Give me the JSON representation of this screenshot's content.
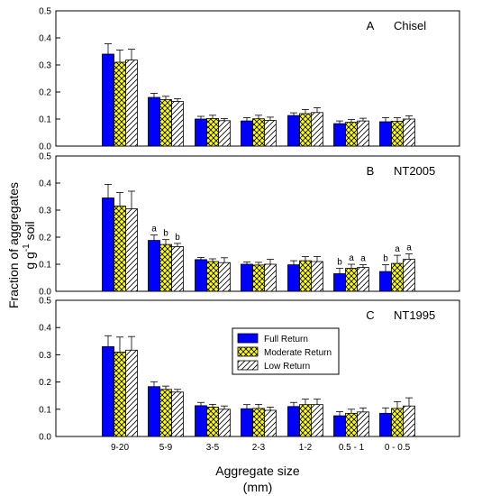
{
  "figure": {
    "ylabel_line1": "Fraction of aggregates",
    "ylabel_line2_main": "g g",
    "ylabel_line2_sup": "-1",
    "ylabel_line2_tail": " soil",
    "xlabel_line1": "Aggregate size",
    "xlabel_line2": "(mm)"
  },
  "legend": {
    "items": [
      {
        "label": "Full Return",
        "pattern": "solid"
      },
      {
        "label": "Moderate Return",
        "pattern": "crosshatch"
      },
      {
        "label": "Low Return",
        "pattern": "diagonal"
      }
    ]
  },
  "colors": {
    "full_return": "#0000ff",
    "moderate_return": "#ffff00",
    "low_return": "#ffffff",
    "outline": "#000000"
  },
  "chart_data": [
    {
      "type": "bar",
      "panel_letter": "A",
      "panel_name": "Chisel",
      "categories": [
        "9-20",
        "5-9",
        "3-5",
        "2-3",
        "1-2",
        "0.5 - 1",
        "0 - 0.5"
      ],
      "ylim": [
        0,
        0.5
      ],
      "yticks": [
        "0.0",
        "0.1",
        "0.2",
        "0.3",
        "0.4",
        "0.5"
      ],
      "series": [
        {
          "name": "Full Return",
          "values": [
            0.34,
            0.18,
            0.1,
            0.093,
            0.113,
            0.083,
            0.09
          ],
          "errors": [
            0.038,
            0.015,
            0.01,
            0.012,
            0.01,
            0.01,
            0.015
          ]
        },
        {
          "name": "Moderate Return",
          "values": [
            0.31,
            0.172,
            0.102,
            0.101,
            0.12,
            0.088,
            0.092
          ],
          "errors": [
            0.045,
            0.012,
            0.012,
            0.013,
            0.015,
            0.01,
            0.013
          ]
        },
        {
          "name": "Low Return",
          "values": [
            0.318,
            0.165,
            0.094,
            0.095,
            0.124,
            0.093,
            0.1
          ],
          "errors": [
            0.04,
            0.01,
            0.008,
            0.012,
            0.018,
            0.01,
            0.012
          ]
        }
      ],
      "annotations": []
    },
    {
      "type": "bar",
      "panel_letter": "B",
      "panel_name": "NT2005",
      "categories": [
        "9-20",
        "5-9",
        "3-5",
        "2-3",
        "1-2",
        "0.5 - 1",
        "0 - 0.5"
      ],
      "ylim": [
        0,
        0.5
      ],
      "yticks": [
        "0.0",
        "0.1",
        "0.2",
        "0.3",
        "0.4",
        "0.5"
      ],
      "series": [
        {
          "name": "Full Return",
          "values": [
            0.345,
            0.188,
            0.117,
            0.1,
            0.098,
            0.065,
            0.073
          ],
          "errors": [
            0.05,
            0.02,
            0.008,
            0.008,
            0.015,
            0.02,
            0.025
          ]
        },
        {
          "name": "Moderate Return",
          "values": [
            0.315,
            0.173,
            0.11,
            0.097,
            0.113,
            0.085,
            0.103
          ],
          "errors": [
            0.05,
            0.018,
            0.01,
            0.01,
            0.015,
            0.015,
            0.03
          ]
        },
        {
          "name": "Low Return",
          "values": [
            0.305,
            0.165,
            0.106,
            0.1,
            0.11,
            0.088,
            0.118
          ],
          "errors": [
            0.065,
            0.012,
            0.018,
            0.018,
            0.018,
            0.01,
            0.02
          ]
        }
      ],
      "annotations": [
        {
          "category": "5-9",
          "letters": [
            "a",
            "b",
            "b"
          ]
        },
        {
          "category": "0.5 - 1",
          "letters": [
            "b",
            "a",
            "a"
          ]
        },
        {
          "category": "0 - 0.5",
          "letters": [
            "b",
            "a",
            "a"
          ]
        }
      ]
    },
    {
      "type": "bar",
      "panel_letter": "C",
      "panel_name": "NT1995",
      "categories": [
        "9-20",
        "5-9",
        "3-5",
        "2-3",
        "1-2",
        "0.5 - 1",
        "0 - 0.5"
      ],
      "ylim": [
        0,
        0.5
      ],
      "yticks": [
        "0.0",
        "0.1",
        "0.2",
        "0.3",
        "0.4",
        "0.5"
      ],
      "series": [
        {
          "name": "Full Return",
          "values": [
            0.33,
            0.183,
            0.113,
            0.102,
            0.11,
            0.076,
            0.085
          ],
          "errors": [
            0.04,
            0.018,
            0.012,
            0.015,
            0.015,
            0.015,
            0.02
          ]
        },
        {
          "name": "Moderate Return",
          "values": [
            0.31,
            0.173,
            0.108,
            0.103,
            0.117,
            0.085,
            0.103
          ],
          "errors": [
            0.055,
            0.012,
            0.01,
            0.015,
            0.02,
            0.015,
            0.025
          ]
        },
        {
          "name": "Low Return",
          "values": [
            0.317,
            0.163,
            0.1,
            0.096,
            0.117,
            0.09,
            0.112
          ],
          "errors": [
            0.05,
            0.01,
            0.012,
            0.012,
            0.02,
            0.015,
            0.03
          ]
        }
      ],
      "annotations": []
    }
  ]
}
